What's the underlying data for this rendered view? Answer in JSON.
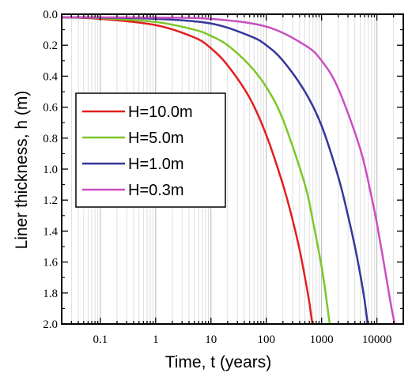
{
  "chart_data": {
    "type": "line",
    "title": "",
    "xlabel": "Time, t (years)",
    "ylabel": "Liner thickness, h (m)",
    "x_scale": "log",
    "xlim": [
      0.02,
      30000
    ],
    "ylim": [
      2.0,
      0.0
    ],
    "y_inverted": true,
    "grid": true,
    "legend_position": "middle-left",
    "x_ticks": [
      {
        "value": 0.1,
        "label": "0.1"
      },
      {
        "value": 1,
        "label": "1"
      },
      {
        "value": 10,
        "label": "10"
      },
      {
        "value": 100,
        "label": "100"
      },
      {
        "value": 1000,
        "label": "1000"
      },
      {
        "value": 10000,
        "label": "10000"
      }
    ],
    "y_ticks": [
      "0.0",
      "0.2",
      "0.4",
      "0.6",
      "0.8",
      "1.0",
      "1.2",
      "1.4",
      "1.6",
      "1.8",
      "2.0"
    ],
    "series": [
      {
        "name": "H=10.0m",
        "color": "#e02020",
        "x": [
          0.02,
          0.1,
          1,
          5,
          10,
          20,
          50,
          100,
          200,
          300,
          400,
          500,
          600,
          680
        ],
        "y": [
          0.02,
          0.03,
          0.07,
          0.15,
          0.22,
          0.33,
          0.54,
          0.78,
          1.1,
          1.33,
          1.52,
          1.7,
          1.86,
          2.0
        ]
      },
      {
        "name": "H=5.0m",
        "color": "#7dc62a",
        "x": [
          0.02,
          0.1,
          1,
          5,
          10,
          20,
          50,
          100,
          200,
          500,
          700,
          1000,
          1200,
          1400
        ],
        "y": [
          0.02,
          0.025,
          0.05,
          0.1,
          0.14,
          0.2,
          0.33,
          0.47,
          0.68,
          1.1,
          1.34,
          1.63,
          1.82,
          2.0
        ]
      },
      {
        "name": "H=1.0m",
        "color": "#35369a",
        "x": [
          0.02,
          0.1,
          1,
          10,
          50,
          100,
          200,
          500,
          1000,
          2000,
          3000,
          4000,
          5000,
          6000,
          6800
        ],
        "y": [
          0.02,
          0.022,
          0.03,
          0.06,
          0.14,
          0.2,
          0.3,
          0.5,
          0.72,
          1.05,
          1.3,
          1.5,
          1.68,
          1.85,
          2.0
        ]
      },
      {
        "name": "H=0.3m",
        "color": "#c94fc1",
        "x": [
          0.02,
          1,
          10,
          100,
          500,
          1000,
          2000,
          5000,
          8000,
          10000,
          14000,
          18000,
          21000
        ],
        "y": [
          0.02,
          0.022,
          0.03,
          0.08,
          0.2,
          0.3,
          0.48,
          0.87,
          1.18,
          1.35,
          1.65,
          1.88,
          2.0
        ]
      }
    ]
  }
}
